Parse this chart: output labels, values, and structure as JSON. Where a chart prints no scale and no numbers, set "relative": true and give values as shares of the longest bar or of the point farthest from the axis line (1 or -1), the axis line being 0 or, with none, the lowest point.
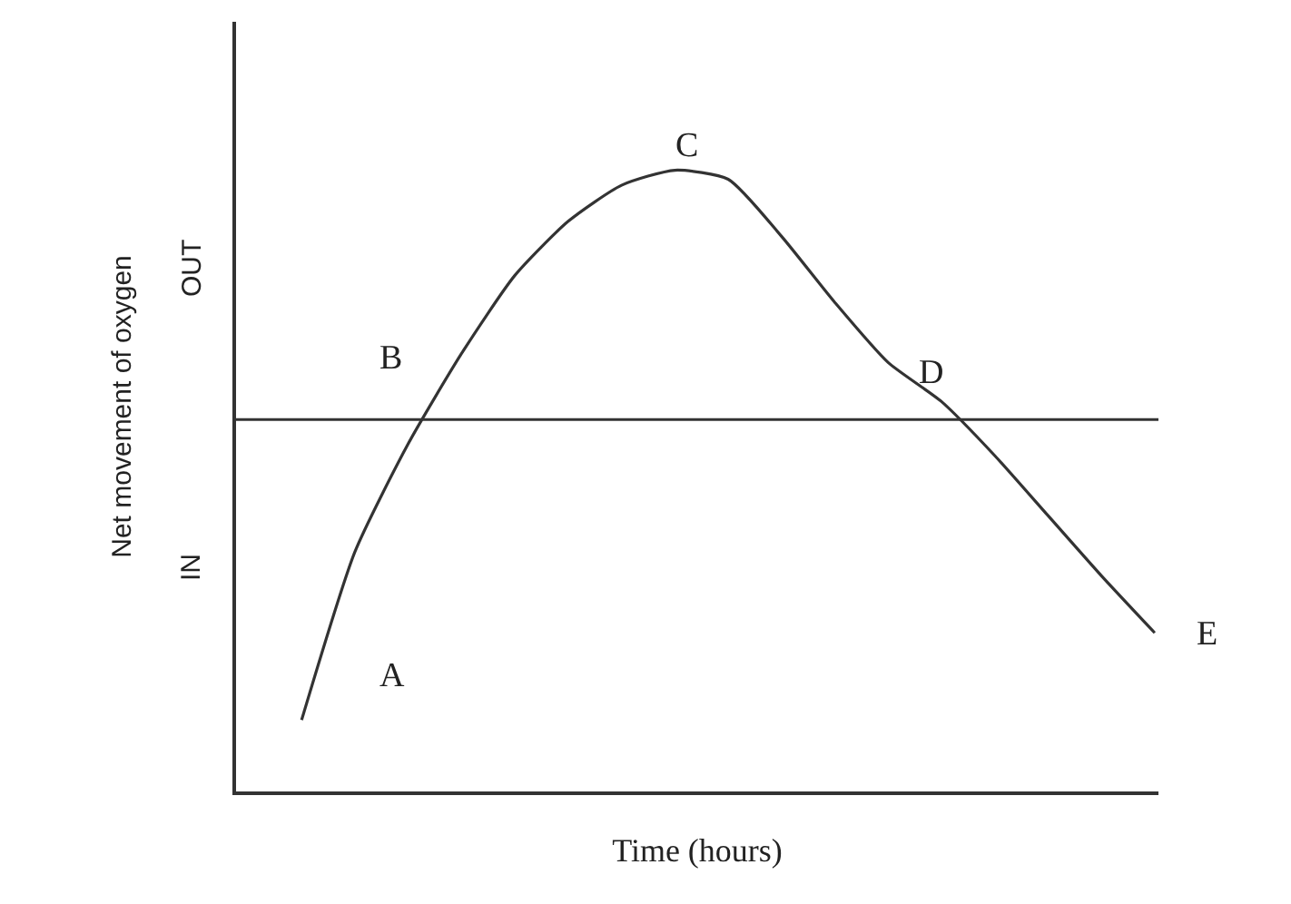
{
  "chart_data": {
    "type": "line",
    "relative": true,
    "xlabel": "Time (hours)",
    "ylabel": "Net movement of oxygen",
    "categories": [
      null,
      null,
      null,
      null,
      null,
      null,
      null,
      null,
      null,
      null,
      null,
      null,
      null,
      null,
      null,
      null,
      null
    ],
    "series": [
      {
        "color": "#333333",
        "values": [
          -1.0,
          -0.44,
          -0.08,
          0.22,
          0.48,
          0.66,
          0.78,
          0.83,
          0.8,
          0.61,
          0.39,
          0.19,
          0.06,
          -0.12,
          -0.32,
          -0.52,
          -0.71
        ]
      }
    ],
    "ref_lines": [
      {
        "axis": "y",
        "value": 0,
        "color": "#333333"
      }
    ],
    "annotations": [
      "A",
      "B",
      "C",
      "D",
      "E",
      "OUT",
      "IN"
    ],
    "marker": "none",
    "legend": false
  }
}
